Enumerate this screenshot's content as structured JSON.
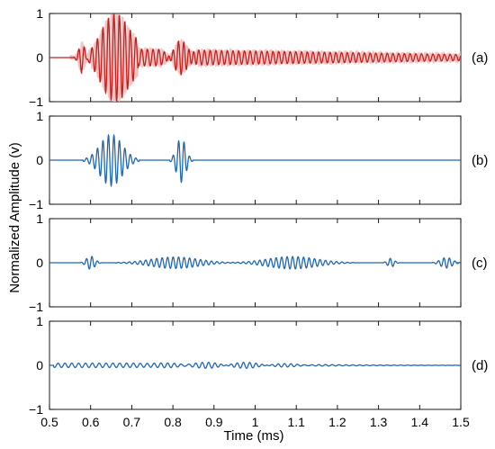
{
  "chart_data": {
    "type": "line",
    "xlabel": "Time (ms)",
    "ylabel": "Normalized Amplitude (v)",
    "xlim": [
      0.5,
      1.5
    ],
    "ylim": [
      -1,
      1
    ],
    "x_ticks": [
      "0.5",
      "0.6",
      "0.7",
      "0.8",
      "0.9",
      "1",
      "1.1",
      "1.2",
      "1.3",
      "1.4",
      "1.5"
    ],
    "y_ticks": [
      "-1",
      "0",
      "1"
    ],
    "grid": false,
    "colors": {
      "panel_a": "#c0201e",
      "panel_a_spread": "#f5b8b8",
      "panels_bcd": "#1f66b0"
    },
    "panels": [
      {
        "label": "(a)",
        "color": "#c0201e",
        "signal_start": 0.55,
        "bursts": [
          {
            "t0": 0.578,
            "t1": 0.715,
            "center": 0.658,
            "amplitude": 1.0,
            "frequency_khz": 75
          },
          {
            "t0": 0.772,
            "t1": 0.858,
            "center": 0.818,
            "amplitude": 0.55,
            "frequency_khz": 75
          },
          {
            "t0": 0.56,
            "t1": 0.6,
            "center": 0.58,
            "amplitude": 0.35,
            "frequency_khz": 75
          }
        ],
        "tail": {
          "t0": 0.66,
          "t1": 1.5,
          "amplitude_start": 0.2,
          "amplitude_end": 0.07,
          "frequency_khz": 72
        },
        "residual_noise": 0.1
      },
      {
        "label": "(b)",
        "color": "#1f66b0",
        "bursts": [
          {
            "t0": 0.582,
            "t1": 0.718,
            "center": 0.65,
            "amplitude": 0.58,
            "frequency_khz": 75
          },
          {
            "t0": 0.792,
            "t1": 0.848,
            "center": 0.82,
            "amplitude": 0.5,
            "frequency_khz": 75
          }
        ]
      },
      {
        "label": "(c)",
        "color": "#1f66b0",
        "bursts": [
          {
            "t0": 0.575,
            "t1": 0.625,
            "center": 0.6,
            "amplitude": 0.15,
            "frequency_khz": 75
          },
          {
            "t0": 0.66,
            "t1": 0.95,
            "center": 0.805,
            "amplitude": 0.13,
            "frequency_khz": 75
          },
          {
            "t0": 0.94,
            "t1": 1.24,
            "center": 1.09,
            "amplitude": 0.14,
            "frequency_khz": 75
          },
          {
            "t0": 1.31,
            "t1": 1.35,
            "center": 1.33,
            "amplitude": 0.1,
            "frequency_khz": 75
          },
          {
            "t0": 1.43,
            "t1": 1.5,
            "center": 1.465,
            "amplitude": 0.12,
            "frequency_khz": 75
          }
        ]
      },
      {
        "label": "(d)",
        "color": "#1f66b0",
        "bursts": [
          {
            "t0": 0.51,
            "t1": 1.5,
            "center": 0.62,
            "amplitude": 0.05,
            "frequency_khz": 60
          },
          {
            "t0": 0.7,
            "t1": 1.2,
            "center": 0.95,
            "amplitude": 0.04,
            "frequency_khz": 70
          }
        ]
      }
    ]
  }
}
